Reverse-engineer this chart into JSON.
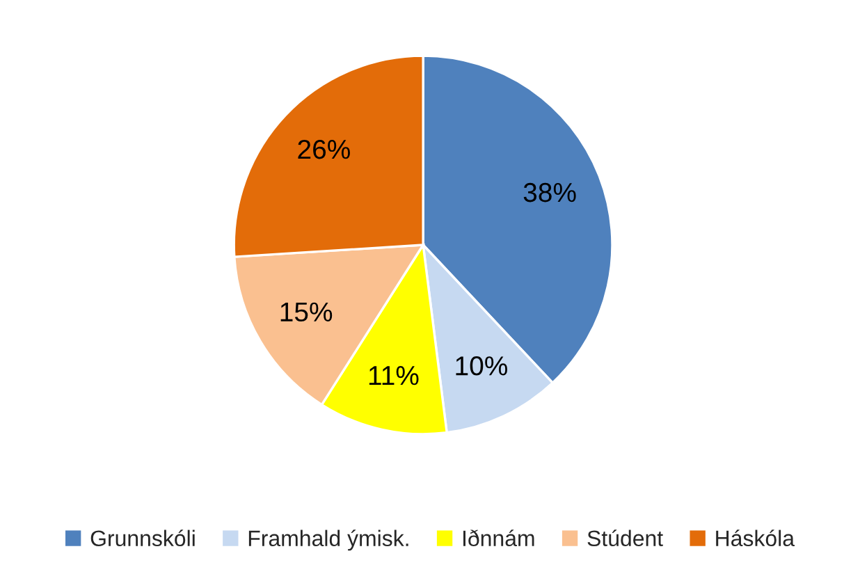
{
  "chart_data": {
    "type": "pie",
    "categories": [
      "Grunnskóli",
      "Framhald ýmisk.",
      "Iðnnám",
      "Stúdent",
      "Háskóla"
    ],
    "values": [
      38,
      10,
      11,
      15,
      26
    ],
    "value_labels": [
      "38%",
      "10%",
      "11%",
      "15%",
      "26%"
    ],
    "colors": [
      "#4f81bd",
      "#c6d9f1",
      "#ffff00",
      "#fac090",
      "#e36c09"
    ],
    "legend": "bottom"
  }
}
